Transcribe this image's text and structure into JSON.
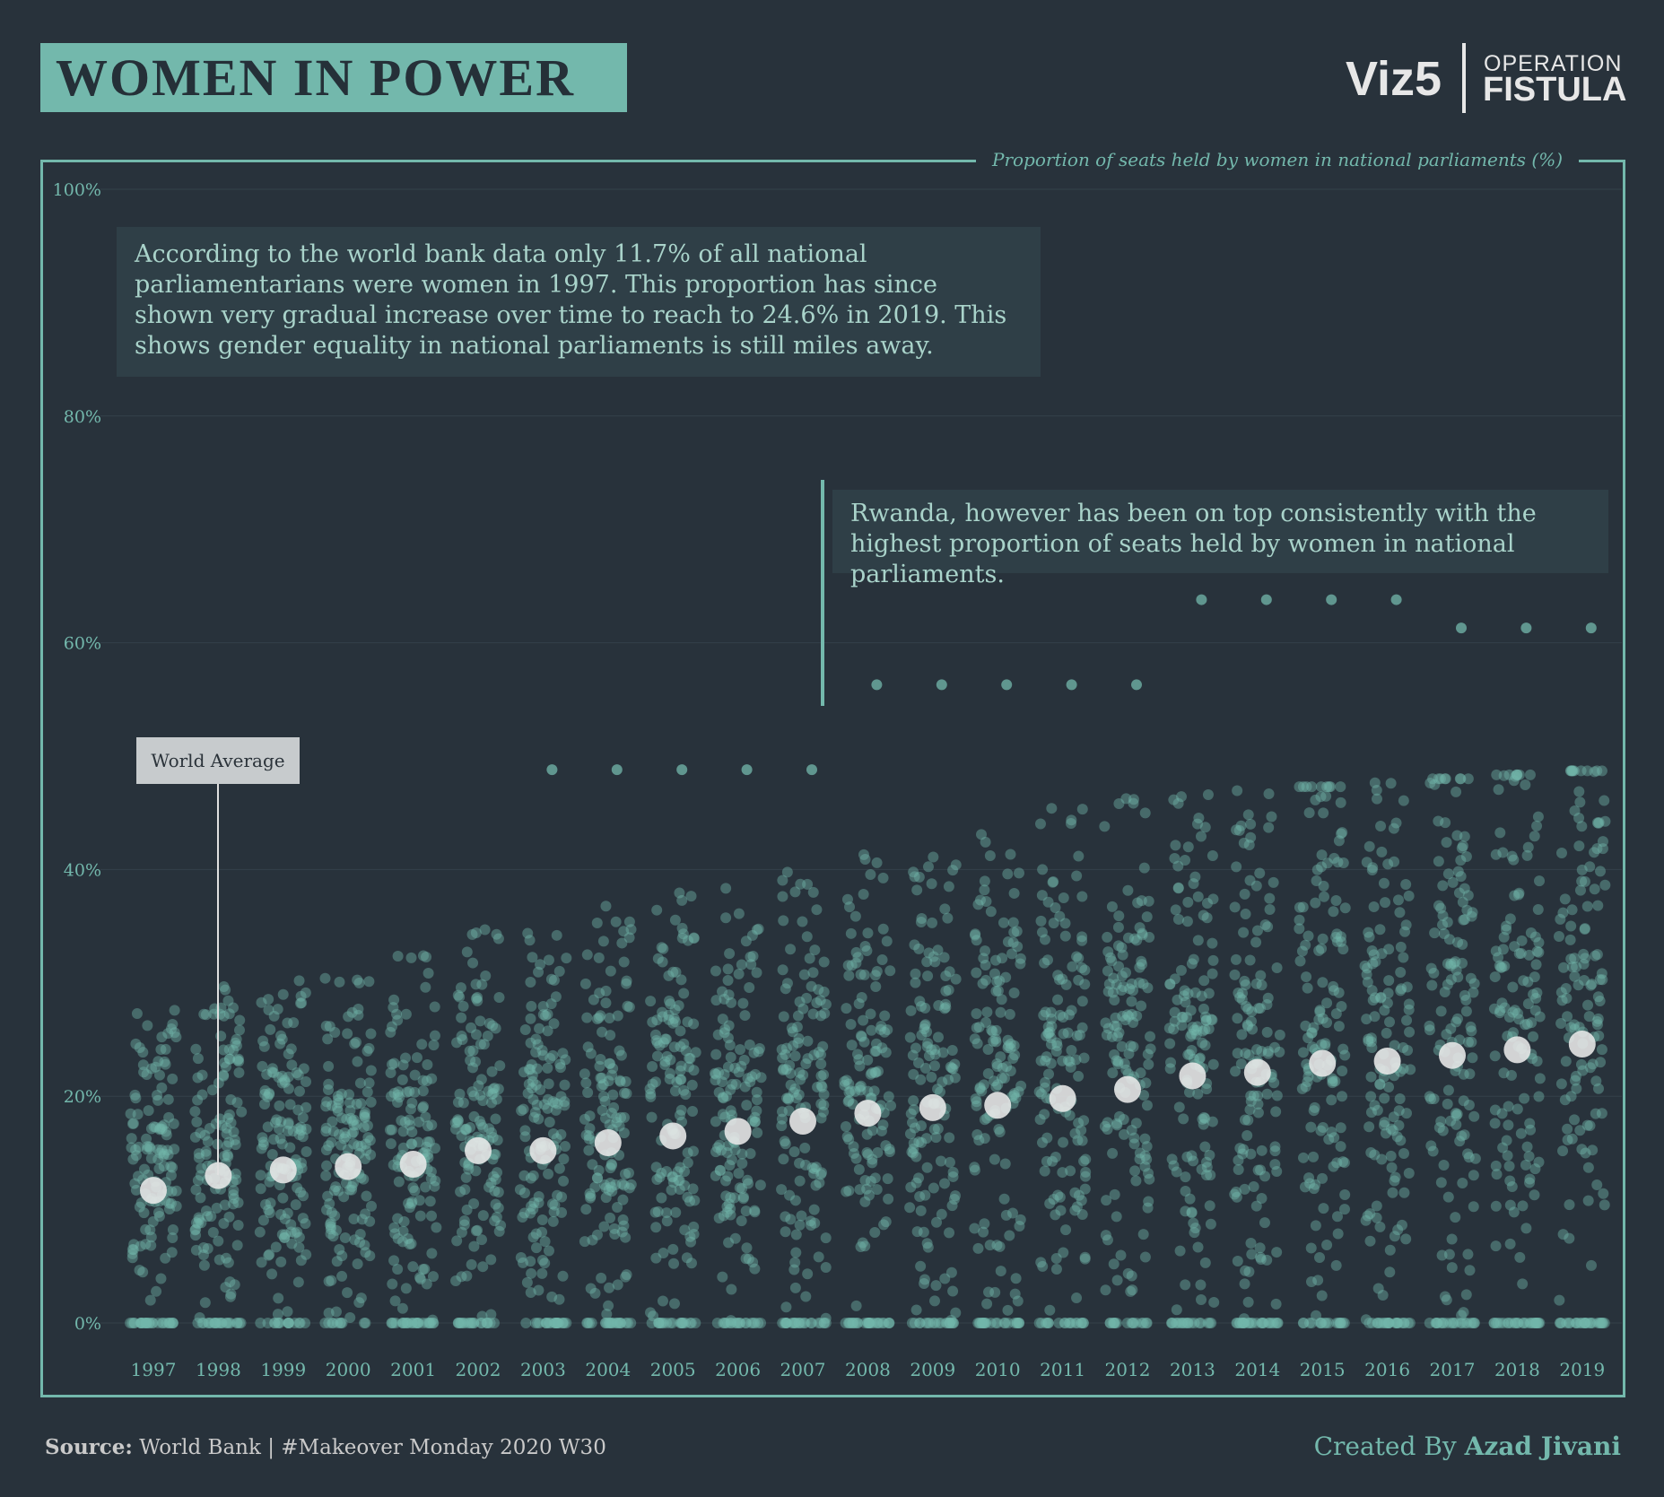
{
  "header": {
    "title": "WOMEN IN POWER",
    "brand_left": "Viz5",
    "brand_right_top": "OPERATION",
    "brand_right_bottom": "FISTULA"
  },
  "frame_label": "Proportion of seats held by women in national parliaments (%)",
  "annotations": {
    "note1": "According to the world bank data only 11.7% of all national parliamentarians were women in 1997. This proportion has since shown very gradual increase over time to reach to 24.6% in 2019. This shows gender equality in national parliaments is still miles away.",
    "note2": "Rwanda, however has been on top consistently with the highest proportion of seats held by women in national parliaments.",
    "world_average_label": "World Average"
  },
  "footer": {
    "source_label": "Source:",
    "source_text": " World Bank | #Makeover Monday 2020 W30",
    "credit_prefix": "Created By ",
    "credit_name": "Azad Jivani"
  },
  "colors": {
    "background": "#28323b",
    "accent": "#73b8ac",
    "dots": "#73b8ac",
    "average": "#e9e9e9",
    "annotation_bg": "#2f3f47",
    "annotation_text": "#a9d3ca"
  },
  "chart_data": {
    "type": "scatter",
    "title": "",
    "ylabel": "Proportion of seats held by women in national parliaments (%)",
    "xlabel": "",
    "ylim": [
      0,
      100
    ],
    "yticks": [
      0,
      20,
      40,
      60,
      80,
      100
    ],
    "ytick_labels": [
      "0%",
      "20%",
      "40%",
      "60%",
      "80%",
      "100%"
    ],
    "grid": true,
    "categories": [
      "1997",
      "1998",
      "1999",
      "2000",
      "2001",
      "2002",
      "2003",
      "2004",
      "2005",
      "2006",
      "2007",
      "2008",
      "2009",
      "2010",
      "2011",
      "2012",
      "2013",
      "2014",
      "2015",
      "2016",
      "2017",
      "2018",
      "2019"
    ],
    "series": [
      {
        "name": "World Average",
        "values": [
          11.7,
          13.0,
          13.5,
          13.8,
          14.0,
          15.2,
          15.2,
          15.9,
          16.5,
          16.9,
          17.8,
          18.5,
          19.0,
          19.2,
          19.8,
          20.6,
          21.8,
          22.1,
          22.9,
          23.1,
          23.6,
          24.1,
          24.6
        ]
      },
      {
        "name": "Rwanda",
        "values": [
          null,
          null,
          null,
          null,
          null,
          null,
          48.8,
          48.8,
          48.8,
          48.8,
          48.8,
          56.3,
          56.3,
          56.3,
          56.3,
          56.3,
          63.8,
          63.8,
          63.8,
          63.8,
          61.3,
          61.3,
          61.3
        ]
      }
    ],
    "country_distribution_note": "Each year also shows a jittered cloud of individual countries, mostly spanning 0% to about 40%, with the spread widening and rising over time."
  }
}
